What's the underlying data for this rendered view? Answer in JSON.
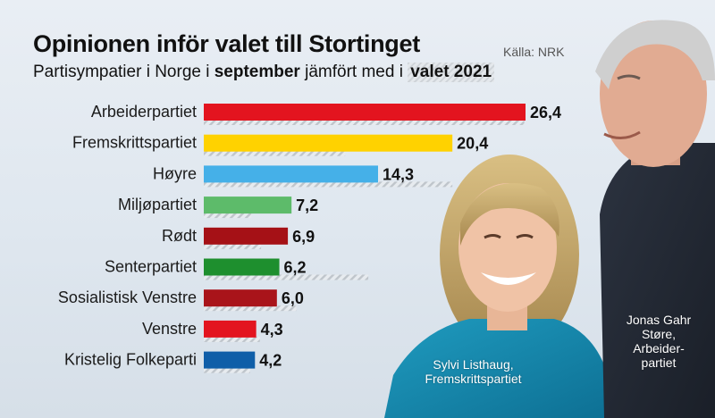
{
  "header": {
    "title": "Opinionen inför valet till Stortinget",
    "source": "Källa: NRK",
    "subtitle_prefix": "Partisympatier i Norge i ",
    "subtitle_bold": "september",
    "subtitle_middle": " jämfört med i ",
    "subtitle_hatched": "valet 2021"
  },
  "captions": {
    "left": "Sylvi Listhaug, Fremskrittspartiet",
    "right": "Jonas Gahr Støre, Arbeider-partiet"
  },
  "chart_data": {
    "type": "bar",
    "orientation": "horizontal",
    "categories": [
      "Arbeiderpartiet",
      "Fremskrittspartiet",
      "Høyre",
      "Miljøpartiet",
      "Rødt",
      "Senterpartiet",
      "Sosialistisk Venstre",
      "Venstre",
      "Kristelig Folkeparti"
    ],
    "series": [
      {
        "name": "september",
        "values": [
          26.4,
          20.4,
          14.3,
          7.2,
          6.9,
          6.2,
          6.0,
          4.3,
          4.2
        ],
        "labels": [
          "26,4",
          "20,4",
          "14,3",
          "7,2",
          "6,9",
          "6,2",
          "6,0",
          "4,3",
          "4,2"
        ],
        "colors": [
          "#e3141f",
          "#ffd200",
          "#45b0e8",
          "#5dbb6a",
          "#a51116",
          "#1e8f2e",
          "#a9141a",
          "#e3141f",
          "#0f5ea8"
        ]
      },
      {
        "name": "valet 2021",
        "values": [
          26.3,
          11.6,
          20.4,
          3.9,
          4.7,
          13.5,
          7.6,
          4.6,
          3.8
        ],
        "hatched": true
      }
    ],
    "xlim": [
      0,
      30
    ],
    "grid": false,
    "legend": "subtitle"
  }
}
